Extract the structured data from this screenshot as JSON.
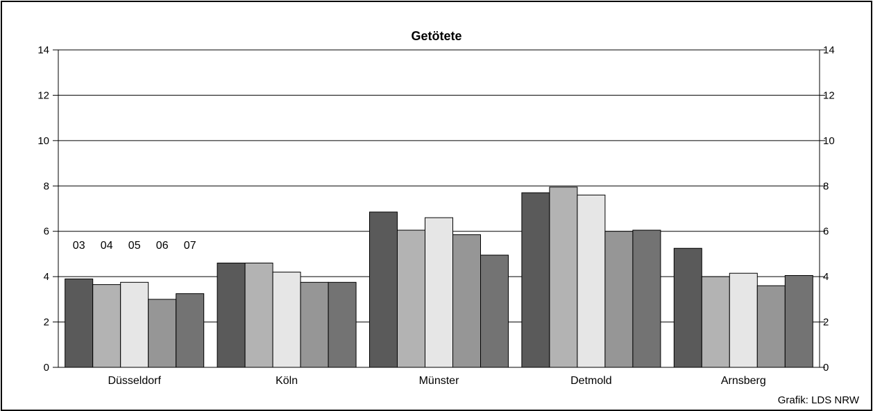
{
  "credit": "Grafik: LDS NRW",
  "chart_data": {
    "type": "bar",
    "title": "Getötete",
    "categories": [
      "Düsseldorf",
      "Köln",
      "Münster",
      "Detmold",
      "Arnsberg"
    ],
    "series": [
      {
        "name": "03",
        "color": "#5a5a5a",
        "values": [
          3.9,
          4.6,
          6.85,
          7.7,
          5.25
        ]
      },
      {
        "name": "04",
        "color": "#b3b3b3",
        "values": [
          3.65,
          4.6,
          6.05,
          7.95,
          4.0
        ]
      },
      {
        "name": "05",
        "color": "#e6e6e6",
        "values": [
          3.75,
          4.2,
          6.6,
          7.6,
          4.15
        ]
      },
      {
        "name": "06",
        "color": "#969696",
        "values": [
          3.0,
          3.75,
          5.85,
          6.0,
          3.6
        ]
      },
      {
        "name": "07",
        "color": "#737373",
        "values": [
          3.25,
          3.75,
          4.95,
          6.05,
          4.05
        ]
      }
    ],
    "ylim": [
      0,
      14
    ],
    "yticks": [
      0,
      2,
      4,
      6,
      8,
      10,
      12,
      14
    ],
    "xlabel": "",
    "ylabel": "",
    "grid": true,
    "secondary_y_axis": true,
    "legend_position": "inside-top-left"
  }
}
